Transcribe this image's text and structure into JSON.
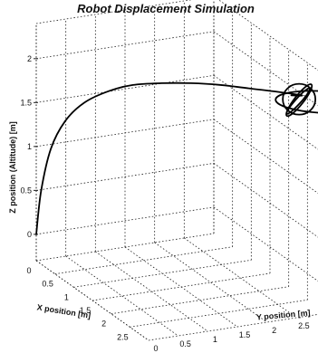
{
  "chart_data": {
    "type": "line",
    "projection": "3d",
    "title": "Robot Displacement Simulation",
    "xlabel": "X position [m]",
    "ylabel": "Y position [m]",
    "zlabel": "Z position (Altitude) [m]",
    "xlim": [
      0,
      3
    ],
    "ylim": [
      0,
      3
    ],
    "zlim": [
      -0.3,
      2.4
    ],
    "xticks": [
      0,
      0.5,
      1,
      1.5,
      2,
      2.5
    ],
    "yticks": [
      0,
      0.5,
      1,
      1.5,
      2,
      2.5
    ],
    "zticks": [
      0,
      0.5,
      1,
      1.5,
      2
    ],
    "grid": true,
    "series": [
      {
        "color": "#000000",
        "x": [
          0,
          0.05,
          0.15,
          0.3,
          0.5,
          0.75,
          1.0,
          1.3,
          1.6,
          1.9,
          2.2,
          2.5,
          2.75,
          2.7
        ],
        "y": [
          0,
          0.05,
          0.15,
          0.3,
          0.5,
          0.75,
          1.0,
          1.3,
          1.6,
          1.9,
          2.2,
          2.5,
          2.75,
          2.6
        ],
        "z": [
          0.0,
          0.5,
          1.0,
          1.35,
          1.6,
          1.78,
          1.9,
          1.98,
          2.04,
          2.08,
          2.1,
          2.12,
          2.13,
          2.13
        ],
        "loops": [
          {
            "cx": 2.72,
            "cy": 2.72,
            "cz": 2.08,
            "shape": "large-ellipse"
          },
          {
            "cx": 2.72,
            "cy": 2.72,
            "cz": 2.08,
            "shape": "circle"
          },
          {
            "cx": 2.72,
            "cy": 2.72,
            "cz": 2.08,
            "shape": "narrow-ellipse"
          }
        ]
      }
    ]
  }
}
